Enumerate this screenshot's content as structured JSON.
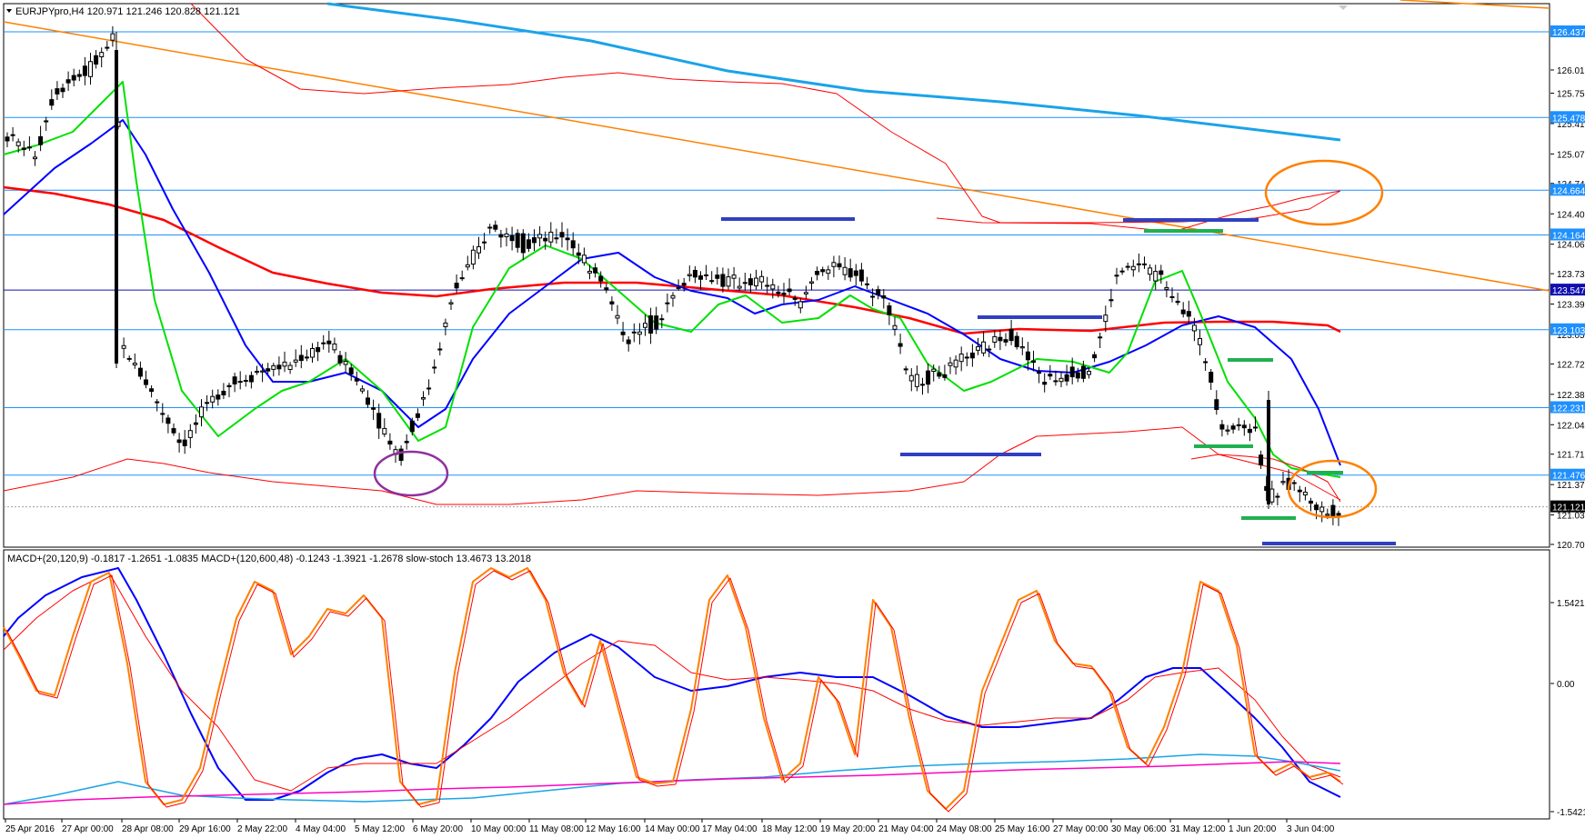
{
  "header": {
    "symbol_line": "EURJPYpro,H4  120.971 121.246 120.828 121.121"
  },
  "indicator_header": "MACD+(20,120,9) -0.1817 -1.2651 -1.0835  MACD+(120,600,48) -0.1243 -1.3921 -1.2678  slow-stoch 13.4673 13.2018",
  "price_axis": {
    "ticks": [
      "126.010",
      "125.750",
      "125.410",
      "125.070",
      "124.740",
      "124.400",
      "124.060",
      "123.730",
      "123.390",
      "123.050",
      "122.720",
      "122.380",
      "122.040",
      "121.710",
      "121.370",
      "121.030",
      "120.700"
    ],
    "levels": [
      {
        "label": "126.437",
        "price": 126.437,
        "color": "#1e90ff"
      },
      {
        "label": "125.478",
        "price": 125.478,
        "color": "#1e90ff"
      },
      {
        "label": "124.664",
        "price": 124.664,
        "color": "#1e90ff"
      },
      {
        "label": "124.164",
        "price": 124.164,
        "color": "#1e90ff"
      },
      {
        "label": "123.547",
        "price": 123.547,
        "color": "#1010b0"
      },
      {
        "label": "123.103",
        "price": 123.103,
        "color": "#1e90ff"
      },
      {
        "label": "122.231",
        "price": 122.231,
        "color": "#1e90ff"
      },
      {
        "label": "121.476",
        "price": 121.476,
        "color": "#1e90ff"
      }
    ],
    "current": {
      "label": "121.121",
      "price": 121.121
    }
  },
  "indicator_axis": {
    "ticks": [
      "1.5421",
      "0.00",
      "-1.5421"
    ]
  },
  "time_axis": {
    "labels": [
      "25 Apr 2016",
      "27 Apr 00:00",
      "28 Apr 08:00",
      "29 Apr 16:00",
      "2 May 22:00",
      "4 May 04:00",
      "5 May 12:00",
      "6 May 20:00",
      "10 May 00:00",
      "11 May 08:00",
      "12 May 16:00",
      "14 May 00:00",
      "17 May 04:00",
      "18 May 12:00",
      "19 May 20:00",
      "21 May 04:00",
      "24 May 08:00",
      "25 May 16:00",
      "27 May 00:00",
      "30 May 06:00",
      "31 May 12:00",
      "1 Jun 20:00",
      "3 Jun 04:00"
    ]
  },
  "colors": {
    "level_line": "#1e90ff",
    "pivot_line": "#1010b0",
    "ma_green": "#00e000",
    "ma_blue": "#0000ff",
    "ma_red": "#ff0000",
    "ma_cyan": "#1aa3e8",
    "bands": "#ff0000",
    "trendline": "#ff8000",
    "support_marks": "#3040c0",
    "green_marks": "#20b050",
    "circle_orange": "#ff8000",
    "circle_purple": "#9030a0",
    "stoch": "#ff8000",
    "stoch_signal": "#ff0000",
    "macd_fast": "#0000ff",
    "macd_slow_signal": "#ff00c0",
    "macd_slow": "#1aa3e8",
    "current_tag": "#000000"
  }
}
